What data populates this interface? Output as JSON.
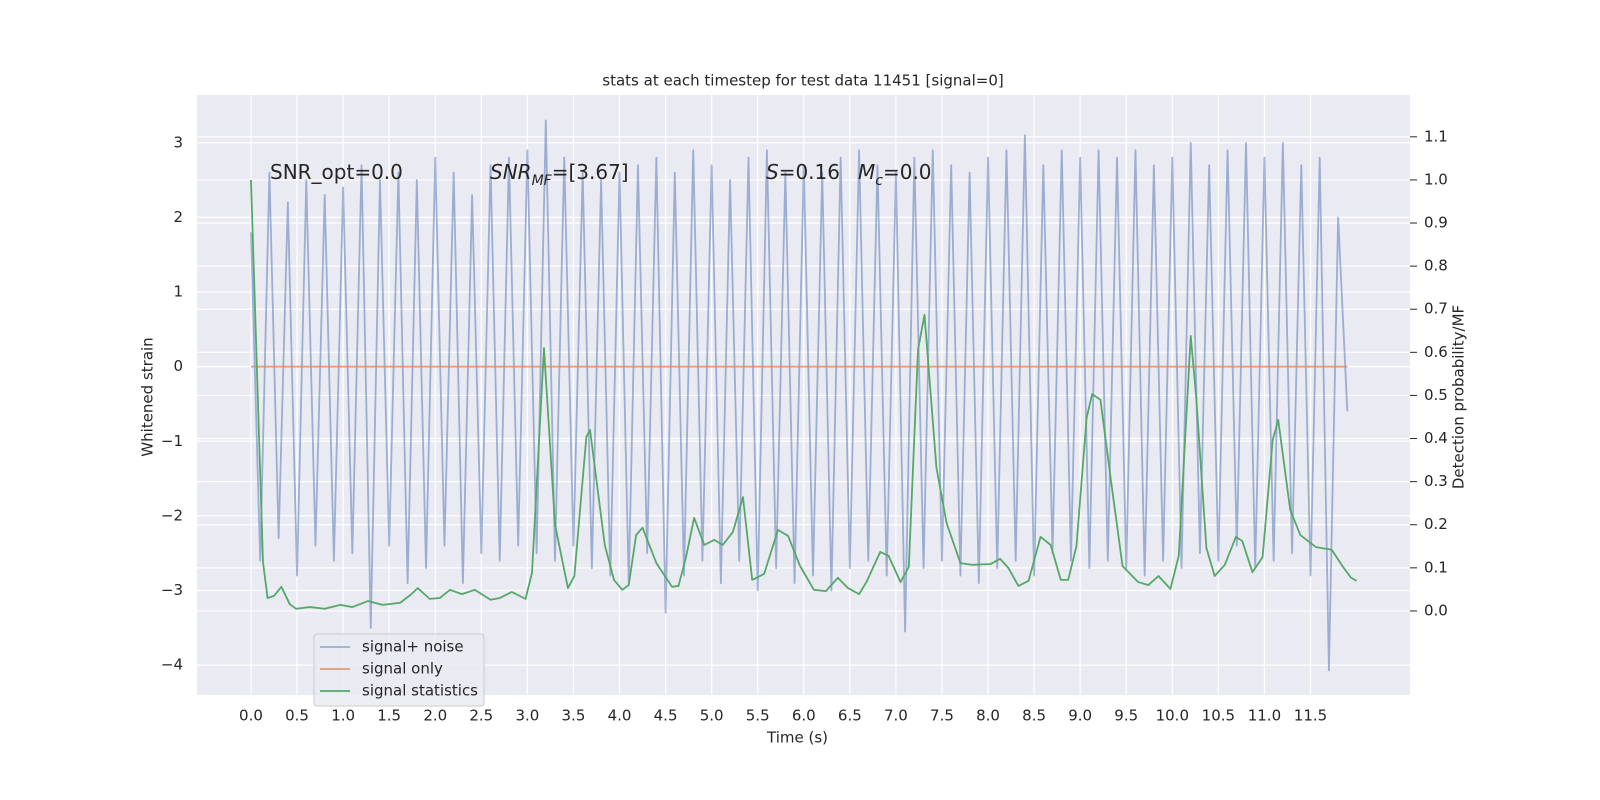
{
  "chart_data": {
    "type": "line",
    "title": "stats at each timestep for test data 11451 [signal=0]",
    "xlabel": "Time (s)",
    "ylabel": "Whitened strain",
    "y2label": "Detection probability/MF",
    "xlim": [
      -0.586,
      12.58
    ],
    "ylim": [
      -4.4,
      3.64
    ],
    "y2lim": [
      -0.195,
      1.197
    ],
    "xticks": [
      {
        "value": 0,
        "label": "0.0"
      },
      0.5,
      {
        "value": 1,
        "label": "1.0"
      },
      1.5,
      {
        "value": 2,
        "label": "2.0"
      },
      2.5,
      {
        "value": 3,
        "label": "3.0"
      },
      3.5,
      {
        "value": 4,
        "label": "4.0"
      },
      4.5,
      {
        "value": 5,
        "label": "5.0"
      },
      5.5,
      {
        "value": 6,
        "label": "6.0"
      },
      6.5,
      {
        "value": 7,
        "label": "7.0"
      },
      7.5,
      {
        "value": 8,
        "label": "8.0"
      },
      8.5,
      {
        "value": 9,
        "label": "9.0"
      },
      9.5,
      {
        "value": 10,
        "label": "10.0"
      },
      10.5,
      {
        "value": 11,
        "label": "11.0"
      },
      11.5
    ],
    "yticks": [
      {
        "value": -4,
        "label": "−4"
      },
      {
        "value": -3,
        "label": "−3"
      },
      {
        "value": -2,
        "label": "−2"
      },
      {
        "value": -1,
        "label": "−1"
      },
      0,
      1,
      2,
      3
    ],
    "y2ticks": [
      {
        "value": 0,
        "label": "0.0"
      },
      0.1,
      0.2,
      0.3,
      0.4,
      0.5,
      0.6,
      0.7,
      0.8,
      0.9,
      {
        "value": 1,
        "label": "1.0"
      },
      1.1
    ],
    "grid": true,
    "legend": "lower left",
    "annotations": [
      {
        "text": "SNR_opt=0.0"
      },
      {
        "text": "SNR",
        "sub": "MF",
        "suffix": "=[3.67]",
        "italic": true
      },
      {
        "text": "S",
        "suffix": "=0.16",
        "italic": true
      },
      {
        "text": "M",
        "sub": "c",
        "suffix": "=0.0",
        "italic": true
      }
    ],
    "series": [
      {
        "name": "signal+ noise",
        "color": "#4c72b0",
        "opacity": 0.5,
        "x": [
          0,
          0.1,
          0.2,
          0.3,
          0.4,
          0.5,
          0.6,
          0.7,
          0.8,
          0.9,
          1,
          1.1,
          1.2,
          1.3,
          1.4,
          1.5,
          1.6,
          1.7,
          1.8,
          1.9,
          2,
          2.1,
          2.2,
          2.3,
          2.4,
          2.5,
          2.6,
          2.7,
          2.8,
          2.9,
          3,
          3.1,
          3.2,
          3.3,
          3.4,
          3.5,
          3.6,
          3.7,
          3.8,
          3.9,
          4,
          4.1,
          4.2,
          4.3,
          4.4,
          4.5,
          4.6,
          4.7,
          4.8,
          4.9,
          5,
          5.1,
          5.2,
          5.3,
          5.4,
          5.5,
          5.6,
          5.7,
          5.8,
          5.9,
          6,
          6.1,
          6.2,
          6.3,
          6.4,
          6.5,
          6.6,
          6.7,
          6.8,
          6.9,
          7,
          7.1,
          7.2,
          7.3,
          7.4,
          7.5,
          7.6,
          7.7,
          7.8,
          7.9,
          8,
          8.1,
          8.2,
          8.3,
          8.4,
          8.5,
          8.6,
          8.7,
          8.8,
          8.9,
          9,
          9.1,
          9.2,
          9.3,
          9.4,
          9.5,
          9.6,
          9.7,
          9.8,
          9.9,
          10,
          10.1,
          10.2,
          10.3,
          10.4,
          10.5,
          10.6,
          10.7,
          10.8,
          10.9,
          11,
          11.1,
          11.2,
          11.3,
          11.4,
          11.5,
          11.6,
          11.7,
          11.8,
          11.9
        ],
        "values": [
          1.8,
          -2.6,
          2.6,
          -2.3,
          2.2,
          -2.8,
          2.5,
          -2.4,
          2.3,
          -2.6,
          2.4,
          -2.5,
          2.7,
          -3.5,
          2.5,
          -2.4,
          2.6,
          -2.9,
          2.5,
          -2.7,
          2.8,
          -2.4,
          2.6,
          -2.9,
          2.3,
          -2.5,
          2.7,
          -2.6,
          2.8,
          -2.4,
          2.9,
          -2.5,
          3.3,
          -2.6,
          2.8,
          -2.4,
          2.6,
          -2.7,
          2.5,
          -2.8,
          2.6,
          -2.9,
          2.7,
          -2.5,
          2.8,
          -3.3,
          2.6,
          -2.8,
          2.9,
          -2.6,
          2.7,
          -2.9,
          2.5,
          -2.6,
          2.8,
          -3.0,
          2.9,
          -2.7,
          2.6,
          -2.9,
          2.7,
          -2.8,
          2.6,
          -3.0,
          2.8,
          -2.7,
          2.9,
          -2.6,
          2.7,
          -2.8,
          2.6,
          -3.55,
          2.8,
          -2.7,
          2.9,
          -2.6,
          2.7,
          -2.8,
          2.6,
          -2.9,
          2.8,
          -2.7,
          2.9,
          -2.6,
          3.1,
          -2.8,
          2.7,
          -2.5,
          2.9,
          -2.6,
          2.8,
          -2.7,
          2.9,
          -2.6,
          2.8,
          -2.7,
          2.9,
          -2.8,
          2.7,
          -2.6,
          2.8,
          -2.7,
          3.0,
          -2.5,
          2.7,
          -2.6,
          2.9,
          -2.4,
          3.0,
          -2.7,
          2.8,
          -2.6,
          3.0,
          -2.5,
          2.7,
          -2.8,
          2.8,
          -4.07,
          2.0,
          -0.6
        ]
      },
      {
        "name": "signal only",
        "color": "#dd8452",
        "opacity": 0.8,
        "x": [
          0,
          11.9
        ],
        "values": [
          0,
          0
        ]
      },
      {
        "name": "signal statistics",
        "color": "#55a868",
        "opacity": 1,
        "axis": "y2",
        "x": [
          0,
          0.13,
          0.18,
          0.25,
          0.33,
          0.42,
          0.49,
          0.64,
          0.8,
          0.97,
          1.1,
          1.27,
          1.43,
          1.62,
          1.73,
          1.81,
          1.94,
          2.05,
          2.16,
          2.29,
          2.43,
          2.6,
          2.7,
          2.83,
          2.98,
          3.05,
          3.18,
          3.3,
          3.44,
          3.51,
          3.64,
          3.68,
          3.84,
          3.94,
          4.03,
          4.1,
          4.18,
          4.25,
          4.4,
          4.57,
          4.64,
          4.72,
          4.81,
          4.92,
          5.03,
          5.12,
          5.23,
          5.34,
          5.44,
          5.57,
          5.72,
          5.83,
          5.96,
          6.11,
          6.24,
          6.37,
          6.48,
          6.6,
          6.68,
          6.83,
          6.92,
          7.05,
          7.14,
          7.24,
          7.31,
          7.44,
          7.55,
          7.7,
          7.83,
          8.03,
          8.13,
          8.22,
          8.33,
          8.44,
          8.57,
          8.68,
          8.79,
          8.87,
          8.96,
          9.07,
          9.13,
          9.22,
          9.33,
          9.46,
          9.63,
          9.74,
          9.85,
          9.98,
          10.07,
          10.2,
          10.26,
          10.37,
          10.46,
          10.57,
          10.69,
          10.76,
          10.87,
          10.98,
          11.09,
          11.15,
          11.28,
          11.39,
          11.56,
          11.73,
          11.86,
          11.94,
          12.0
        ],
        "values": [
          1.0,
          0.114,
          0.03,
          0.035,
          0.056,
          0.016,
          0.005,
          0.009,
          0.005,
          0.014,
          0.009,
          0.023,
          0.014,
          0.019,
          0.037,
          0.053,
          0.028,
          0.03,
          0.049,
          0.039,
          0.049,
          0.026,
          0.03,
          0.044,
          0.028,
          0.088,
          0.61,
          0.2,
          0.053,
          0.081,
          0.404,
          0.42,
          0.153,
          0.072,
          0.049,
          0.06,
          0.176,
          0.193,
          0.111,
          0.056,
          0.058,
          0.123,
          0.216,
          0.153,
          0.165,
          0.153,
          0.183,
          0.264,
          0.072,
          0.086,
          0.188,
          0.174,
          0.104,
          0.049,
          0.046,
          0.077,
          0.053,
          0.039,
          0.067,
          0.137,
          0.128,
          0.067,
          0.102,
          0.606,
          0.687,
          0.332,
          0.204,
          0.111,
          0.107,
          0.109,
          0.121,
          0.1,
          0.058,
          0.07,
          0.172,
          0.153,
          0.072,
          0.072,
          0.151,
          0.448,
          0.503,
          0.49,
          0.309,
          0.104,
          0.067,
          0.06,
          0.081,
          0.051,
          0.128,
          0.638,
          0.494,
          0.146,
          0.081,
          0.107,
          0.172,
          0.162,
          0.09,
          0.125,
          0.397,
          0.443,
          0.234,
          0.176,
          0.148,
          0.142,
          0.1,
          0.077,
          0.07
        ]
      }
    ]
  }
}
